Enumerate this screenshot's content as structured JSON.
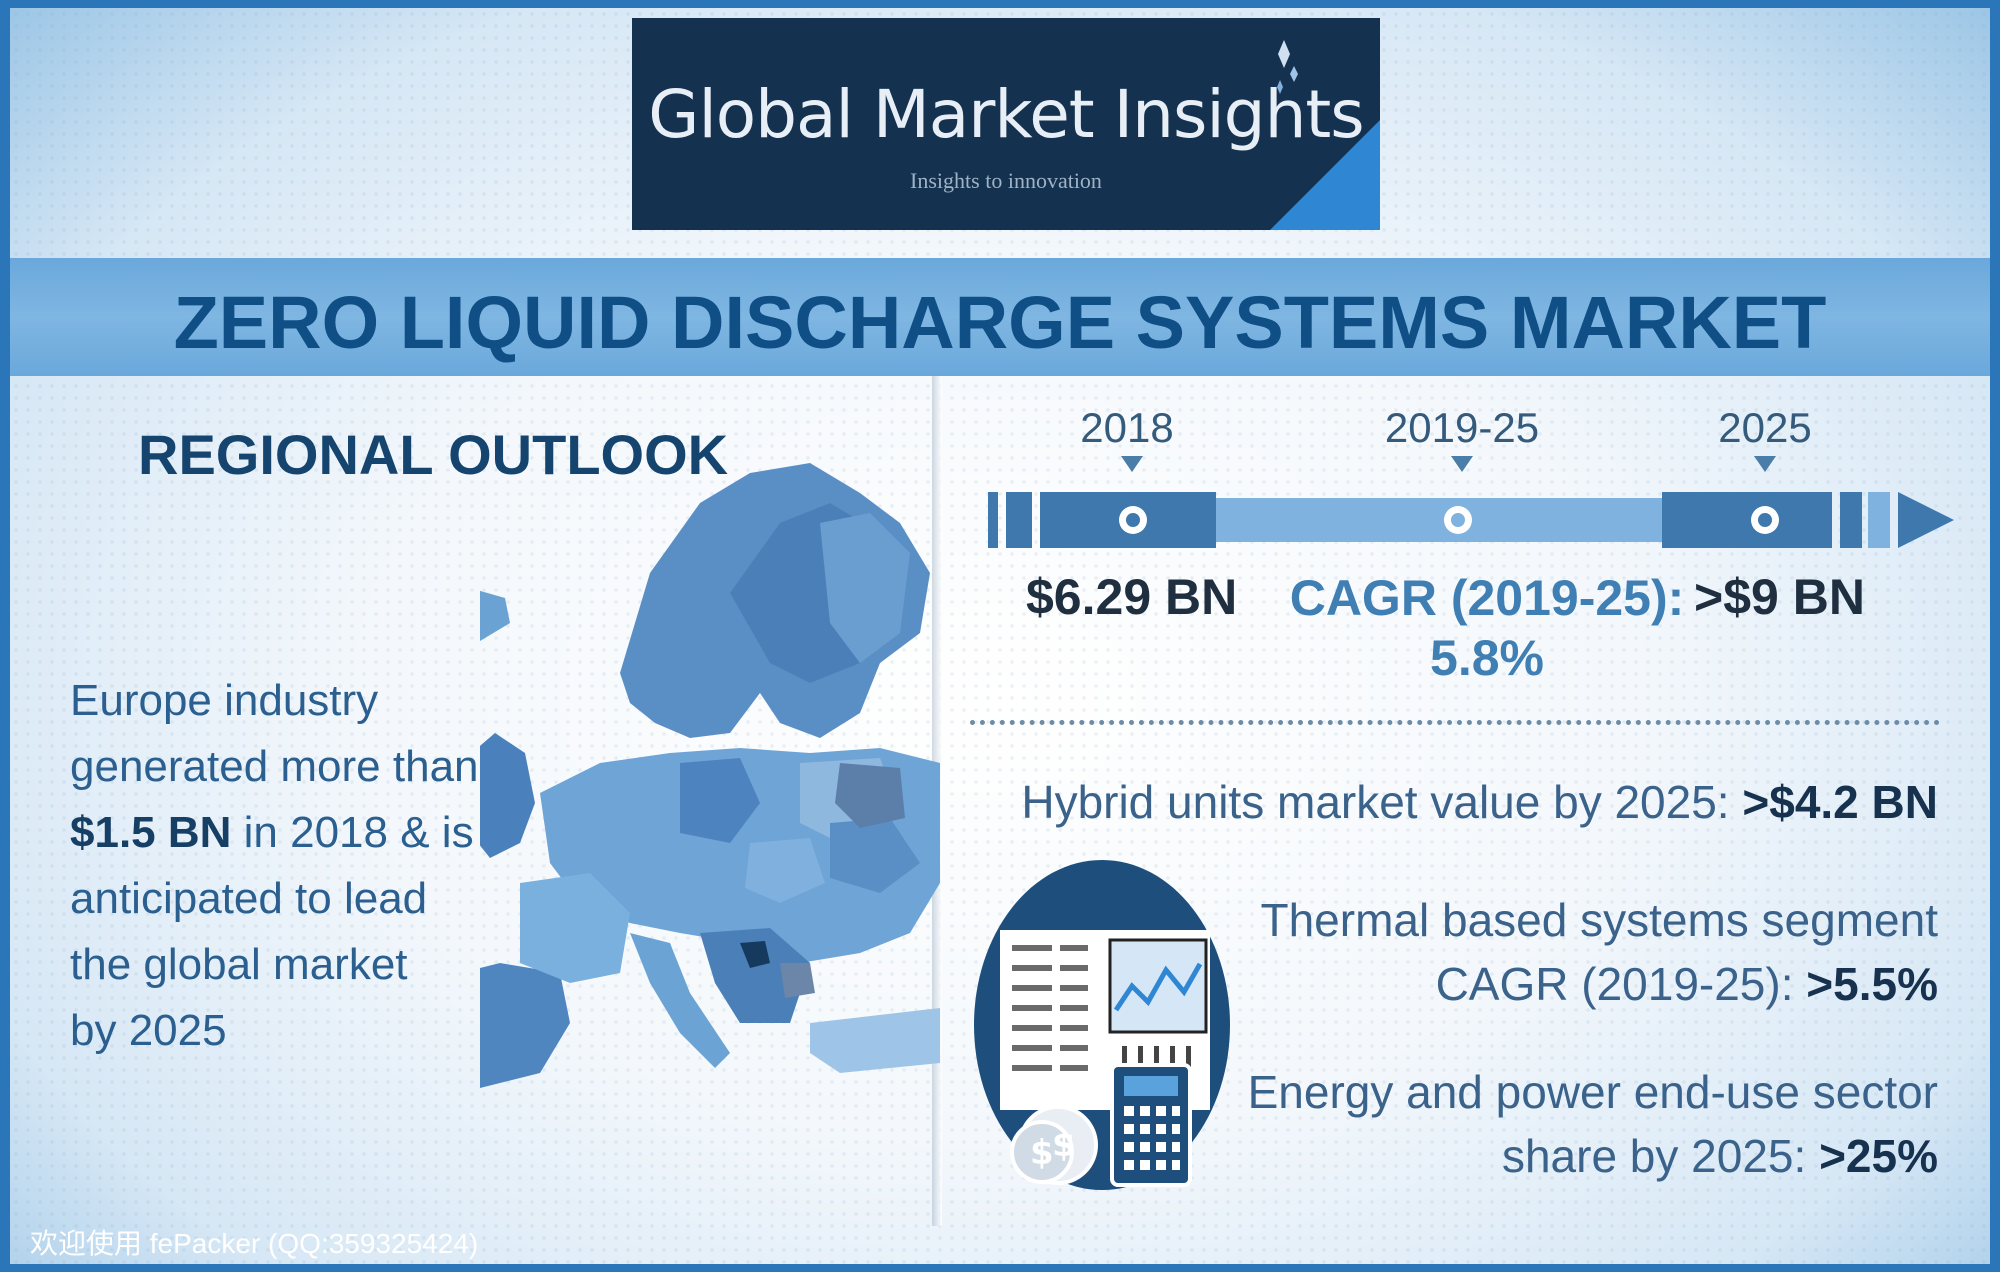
{
  "logo": {
    "title": "Global Market Insights",
    "tagline": "Insights to innovation",
    "icon": "logo-sparkle-icon"
  },
  "header": {
    "title": "ZERO LIQUID DISCHARGE SYSTEMS MARKET"
  },
  "regional": {
    "title": "REGIONAL OUTLOOK",
    "text_line1": "Europe industry",
    "text_line2": "generated more than",
    "text_bold": "$1.5 BN",
    "text_line3": " in 2018 & is",
    "text_line4": "anticipated to lead",
    "text_line5": "the global market",
    "text_line6": "by 2025",
    "map_icon": "europe-map-icon"
  },
  "timeline": {
    "year_start": "2018",
    "year_mid": "2019-25",
    "year_end": "2025",
    "value_start": "$6.29 BN",
    "cagr_label": "CAGR (2019-25):",
    "cagr_value": "5.8%",
    "value_end": ">$9 BN"
  },
  "stats": {
    "hybrid_label": "Hybrid units market value by 2025: ",
    "hybrid_value": ">$4.2 BN",
    "thermal_label_line1": "Thermal based systems segment",
    "thermal_label_line2": "CAGR (2019-25): ",
    "thermal_value": ">5.5%",
    "energy_label_line1": "Energy and power end-use sector",
    "energy_label_line2": "share by 2025: ",
    "energy_value": ">25%",
    "icon": "finance-report-calculator-icon"
  },
  "watermark": "欢迎使用 fePacker (QQ:359325424)",
  "colors": {
    "frame": "#2a76b8",
    "title_text": "#0f4f86",
    "logo_bg": "#14324f",
    "accent": "#2f86d3"
  }
}
